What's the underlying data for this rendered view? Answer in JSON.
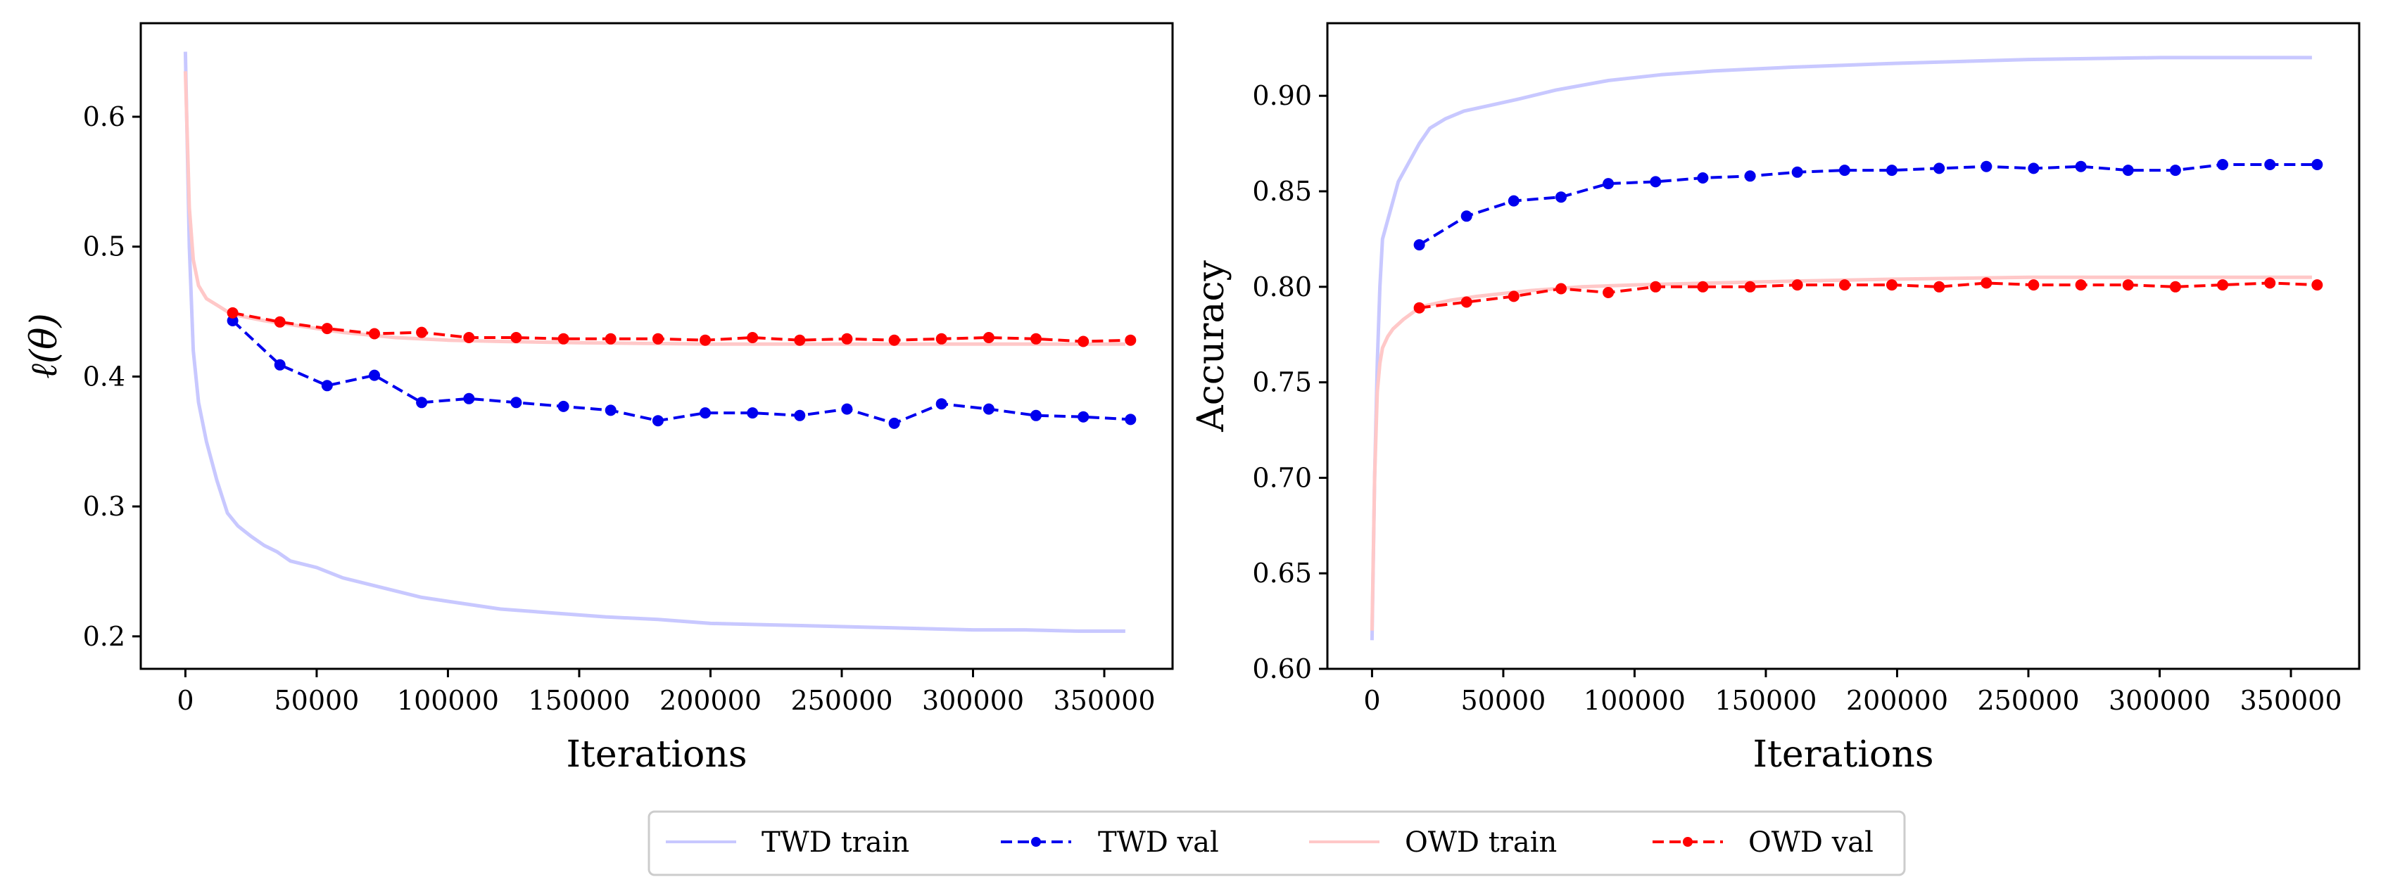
{
  "figure": {
    "legend": [
      {
        "label": "TWD train",
        "color": "#c8c8ff",
        "style": "solid-light"
      },
      {
        "label": "TWD val",
        "color": "#0000ee",
        "style": "dashed-marker"
      },
      {
        "label": "OWD train",
        "color": "#ffc8c8",
        "style": "solid-light"
      },
      {
        "label": "OWD val",
        "color": "#ff0000",
        "style": "dashed-marker"
      }
    ],
    "legend_placement": "bottom-center"
  },
  "chart_data": [
    {
      "type": "line",
      "xlabel": "Iterations",
      "ylabel": "ℓ(θ)",
      "xlim": [
        -17000,
        376000
      ],
      "ylim": [
        0.175,
        0.672
      ],
      "xticks": [
        0,
        50000,
        100000,
        150000,
        200000,
        250000,
        300000,
        350000
      ],
      "xtick_labels": [
        "0",
        "50000",
        "100000",
        "150000",
        "200000",
        "250000",
        "300000",
        "350000"
      ],
      "yticks": [
        0.2,
        0.3,
        0.4,
        0.5,
        0.6
      ],
      "ytick_labels": [
        "0.2",
        "0.3",
        "0.4",
        "0.5",
        "0.6"
      ],
      "grid": false,
      "series": [
        {
          "name": "TWD train",
          "color": "#c8c8ff",
          "dashed": false,
          "markers": false,
          "x": [
            0,
            1500,
            3000,
            5000,
            8000,
            12000,
            16000,
            20000,
            25000,
            30000,
            35000,
            40000,
            50000,
            60000,
            70000,
            80000,
            90000,
            100000,
            110000,
            120000,
            140000,
            160000,
            180000,
            200000,
            220000,
            240000,
            260000,
            280000,
            300000,
            320000,
            340000,
            358000
          ],
          "y": [
            0.65,
            0.5,
            0.42,
            0.38,
            0.35,
            0.32,
            0.295,
            0.285,
            0.277,
            0.27,
            0.265,
            0.258,
            0.253,
            0.245,
            0.24,
            0.235,
            0.23,
            0.227,
            0.224,
            0.221,
            0.218,
            0.215,
            0.213,
            0.21,
            0.209,
            0.208,
            0.207,
            0.206,
            0.205,
            0.205,
            0.204,
            0.204
          ]
        },
        {
          "name": "TWD val",
          "color": "#0000ee",
          "dashed": true,
          "markers": true,
          "x": [
            18000,
            36000,
            54000,
            72000,
            90000,
            108000,
            126000,
            144000,
            162000,
            180000,
            198000,
            216000,
            234000,
            252000,
            270000,
            288000,
            306000,
            324000,
            342000,
            360000
          ],
          "y": [
            0.443,
            0.409,
            0.393,
            0.401,
            0.38,
            0.383,
            0.38,
            0.377,
            0.374,
            0.366,
            0.372,
            0.372,
            0.37,
            0.375,
            0.364,
            0.379,
            0.375,
            0.37,
            0.369,
            0.367
          ]
        },
        {
          "name": "OWD train",
          "color": "#ffc8c8",
          "dashed": false,
          "markers": false,
          "x": [
            0,
            1500,
            3000,
            5000,
            8000,
            12000,
            16000,
            20000,
            30000,
            40000,
            50000,
            60000,
            80000,
            100000,
            120000,
            150000,
            200000,
            250000,
            300000,
            358000
          ],
          "y": [
            0.635,
            0.53,
            0.49,
            0.47,
            0.46,
            0.455,
            0.45,
            0.447,
            0.443,
            0.44,
            0.437,
            0.434,
            0.43,
            0.428,
            0.427,
            0.426,
            0.425,
            0.425,
            0.425,
            0.425
          ]
        },
        {
          "name": "OWD val",
          "color": "#ff0000",
          "dashed": true,
          "markers": true,
          "x": [
            18000,
            36000,
            54000,
            72000,
            90000,
            108000,
            126000,
            144000,
            162000,
            180000,
            198000,
            216000,
            234000,
            252000,
            270000,
            288000,
            306000,
            324000,
            342000,
            360000
          ],
          "y": [
            0.449,
            0.442,
            0.437,
            0.433,
            0.434,
            0.43,
            0.43,
            0.429,
            0.429,
            0.429,
            0.428,
            0.43,
            0.428,
            0.429,
            0.428,
            0.429,
            0.43,
            0.429,
            0.427,
            0.428
          ]
        }
      ]
    },
    {
      "type": "line",
      "xlabel": "Iterations",
      "ylabel": "Accuracy",
      "xlim": [
        -17000,
        376000
      ],
      "ylim": [
        0.6,
        0.938
      ],
      "xticks": [
        0,
        50000,
        100000,
        150000,
        200000,
        250000,
        300000,
        350000
      ],
      "xtick_labels": [
        "0",
        "50000",
        "100000",
        "150000",
        "200000",
        "250000",
        "300000",
        "350000"
      ],
      "yticks": [
        0.6,
        0.65,
        0.7,
        0.75,
        0.8,
        0.85,
        0.9
      ],
      "ytick_labels": [
        "0.60",
        "0.65",
        "0.70",
        "0.75",
        "0.80",
        "0.85",
        "0.90"
      ],
      "grid": false,
      "series": [
        {
          "name": "TWD train",
          "color": "#c8c8ff",
          "dashed": false,
          "markers": false,
          "x": [
            0,
            1000,
            2000,
            3000,
            4000,
            6000,
            8000,
            10000,
            14000,
            18000,
            22000,
            28000,
            35000,
            45000,
            55000,
            70000,
            90000,
            110000,
            130000,
            160000,
            200000,
            250000,
            300000,
            358000
          ],
          "y": [
            0.615,
            0.7,
            0.76,
            0.8,
            0.825,
            0.835,
            0.845,
            0.855,
            0.865,
            0.875,
            0.883,
            0.888,
            0.892,
            0.895,
            0.898,
            0.903,
            0.908,
            0.911,
            0.913,
            0.915,
            0.917,
            0.919,
            0.92,
            0.92
          ]
        },
        {
          "name": "TWD val",
          "color": "#0000ee",
          "dashed": true,
          "markers": true,
          "x": [
            18000,
            36000,
            54000,
            72000,
            90000,
            108000,
            126000,
            144000,
            162000,
            180000,
            198000,
            216000,
            234000,
            252000,
            270000,
            288000,
            306000,
            324000,
            342000,
            360000
          ],
          "y": [
            0.822,
            0.837,
            0.845,
            0.847,
            0.854,
            0.855,
            0.857,
            0.858,
            0.86,
            0.861,
            0.861,
            0.862,
            0.863,
            0.862,
            0.863,
            0.861,
            0.861,
            0.864,
            0.864,
            0.864
          ]
        },
        {
          "name": "OWD train",
          "color": "#ffc8c8",
          "dashed": false,
          "markers": false,
          "x": [
            0,
            1000,
            2000,
            3000,
            4000,
            6000,
            8000,
            12000,
            16000,
            20000,
            30000,
            40000,
            60000,
            80000,
            100000,
            130000,
            160000,
            200000,
            250000,
            300000,
            358000
          ],
          "y": [
            0.62,
            0.7,
            0.745,
            0.76,
            0.768,
            0.774,
            0.778,
            0.783,
            0.787,
            0.79,
            0.793,
            0.795,
            0.798,
            0.8,
            0.801,
            0.802,
            0.803,
            0.804,
            0.805,
            0.805,
            0.805
          ]
        },
        {
          "name": "OWD val",
          "color": "#ff0000",
          "dashed": true,
          "markers": true,
          "x": [
            18000,
            36000,
            54000,
            72000,
            90000,
            108000,
            126000,
            144000,
            162000,
            180000,
            198000,
            216000,
            234000,
            252000,
            270000,
            288000,
            306000,
            324000,
            342000,
            360000
          ],
          "y": [
            0.789,
            0.792,
            0.795,
            0.799,
            0.797,
            0.8,
            0.8,
            0.8,
            0.801,
            0.801,
            0.801,
            0.8,
            0.802,
            0.801,
            0.801,
            0.801,
            0.8,
            0.801,
            0.802,
            0.801
          ]
        }
      ]
    }
  ]
}
